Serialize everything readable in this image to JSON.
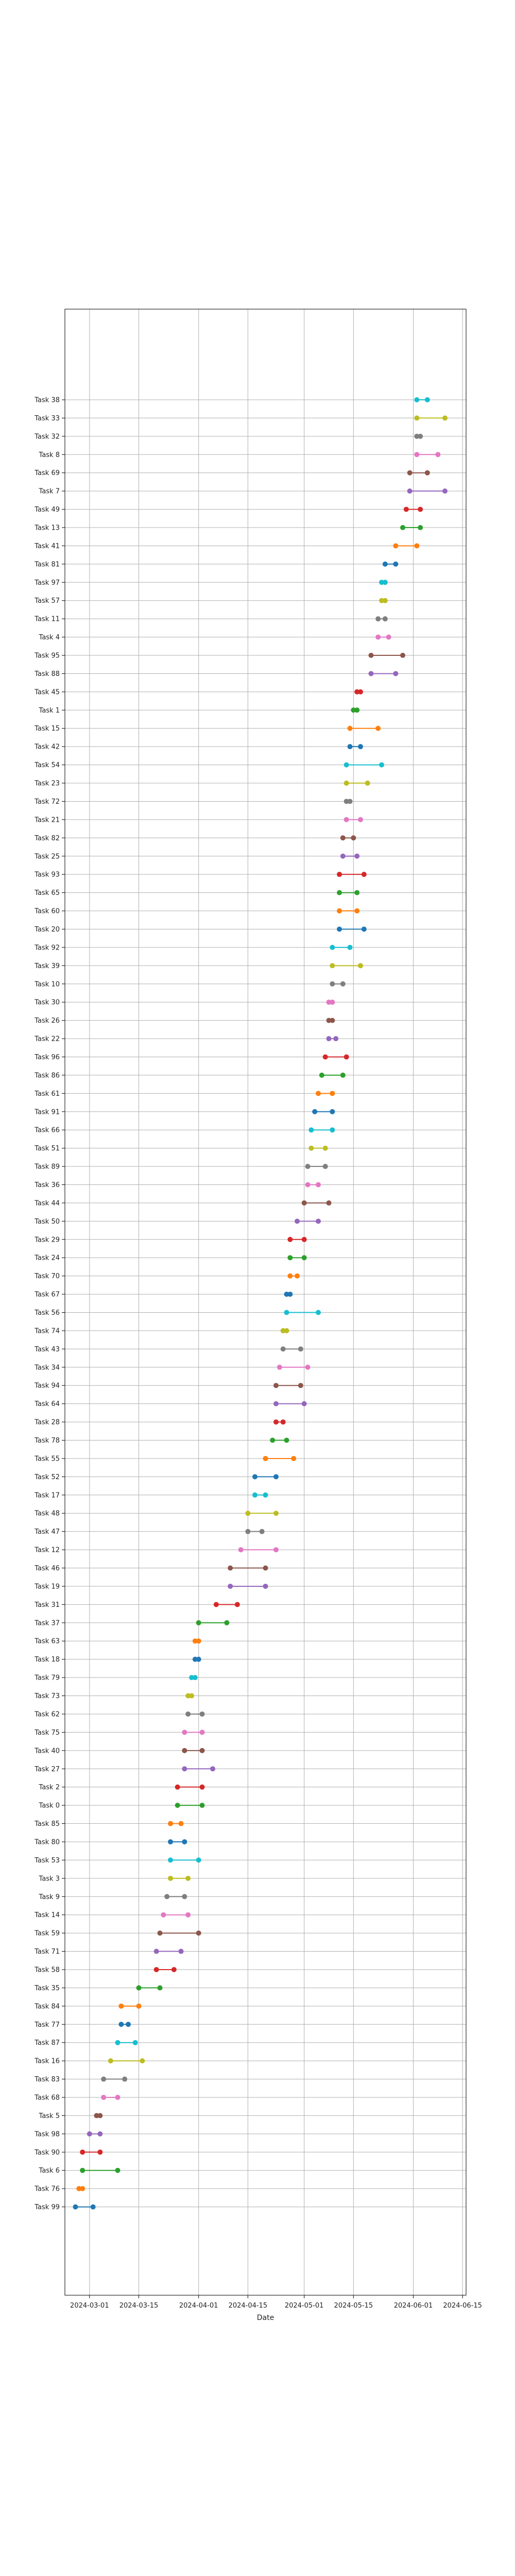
{
  "chart_data": {
    "type": "dumbbell",
    "xlabel": "Date",
    "x_ticks": [
      "2024-03-01",
      "2024-03-15",
      "2024-04-01",
      "2024-04-15",
      "2024-05-01",
      "2024-05-15",
      "2024-06-01",
      "2024-06-15"
    ],
    "xlim": [
      "2024-02-23",
      "2024-06-16"
    ],
    "grid": true,
    "tasks": [
      {
        "name": "Task 38",
        "start": "2024-06-02",
        "end": "2024-06-05",
        "color": "#17becf"
      },
      {
        "name": "Task 33",
        "start": "2024-06-02",
        "end": "2024-06-10",
        "color": "#bcbd22"
      },
      {
        "name": "Task 32",
        "start": "2024-06-02",
        "end": "2024-06-03",
        "color": "#7f7f7f"
      },
      {
        "name": "Task 8",
        "start": "2024-06-02",
        "end": "2024-06-08",
        "color": "#e377c2"
      },
      {
        "name": "Task 69",
        "start": "2024-05-31",
        "end": "2024-06-05",
        "color": "#8c564b"
      },
      {
        "name": "Task 7",
        "start": "2024-05-31",
        "end": "2024-06-10",
        "color": "#9467bd"
      },
      {
        "name": "Task 49",
        "start": "2024-05-30",
        "end": "2024-06-03",
        "color": "#d62728"
      },
      {
        "name": "Task 13",
        "start": "2024-05-29",
        "end": "2024-06-03",
        "color": "#2ca02c"
      },
      {
        "name": "Task 41",
        "start": "2024-05-27",
        "end": "2024-06-02",
        "color": "#ff7f0e"
      },
      {
        "name": "Task 81",
        "start": "2024-05-24",
        "end": "2024-05-27",
        "color": "#1f77b4"
      },
      {
        "name": "Task 97",
        "start": "2024-05-23",
        "end": "2024-05-24",
        "color": "#17becf"
      },
      {
        "name": "Task 57",
        "start": "2024-05-23",
        "end": "2024-05-24",
        "color": "#bcbd22"
      },
      {
        "name": "Task 11",
        "start": "2024-05-22",
        "end": "2024-05-24",
        "color": "#7f7f7f"
      },
      {
        "name": "Task 4",
        "start": "2024-05-22",
        "end": "2024-05-25",
        "color": "#e377c2"
      },
      {
        "name": "Task 95",
        "start": "2024-05-20",
        "end": "2024-05-29",
        "color": "#8c564b"
      },
      {
        "name": "Task 88",
        "start": "2024-05-20",
        "end": "2024-05-27",
        "color": "#9467bd"
      },
      {
        "name": "Task 45",
        "start": "2024-05-16",
        "end": "2024-05-17",
        "color": "#d62728"
      },
      {
        "name": "Task 1",
        "start": "2024-05-15",
        "end": "2024-05-16",
        "color": "#2ca02c"
      },
      {
        "name": "Task 15",
        "start": "2024-05-14",
        "end": "2024-05-22",
        "color": "#ff7f0e"
      },
      {
        "name": "Task 42",
        "start": "2024-05-14",
        "end": "2024-05-17",
        "color": "#1f77b4"
      },
      {
        "name": "Task 54",
        "start": "2024-05-13",
        "end": "2024-05-23",
        "color": "#17becf"
      },
      {
        "name": "Task 23",
        "start": "2024-05-13",
        "end": "2024-05-19",
        "color": "#bcbd22"
      },
      {
        "name": "Task 72",
        "start": "2024-05-13",
        "end": "2024-05-14",
        "color": "#7f7f7f"
      },
      {
        "name": "Task 21",
        "start": "2024-05-13",
        "end": "2024-05-17",
        "color": "#e377c2"
      },
      {
        "name": "Task 82",
        "start": "2024-05-12",
        "end": "2024-05-15",
        "color": "#8c564b"
      },
      {
        "name": "Task 25",
        "start": "2024-05-12",
        "end": "2024-05-16",
        "color": "#9467bd"
      },
      {
        "name": "Task 93",
        "start": "2024-05-11",
        "end": "2024-05-18",
        "color": "#d62728"
      },
      {
        "name": "Task 65",
        "start": "2024-05-11",
        "end": "2024-05-16",
        "color": "#2ca02c"
      },
      {
        "name": "Task 60",
        "start": "2024-05-11",
        "end": "2024-05-16",
        "color": "#ff7f0e"
      },
      {
        "name": "Task 20",
        "start": "2024-05-11",
        "end": "2024-05-18",
        "color": "#1f77b4"
      },
      {
        "name": "Task 92",
        "start": "2024-05-09",
        "end": "2024-05-14",
        "color": "#17becf"
      },
      {
        "name": "Task 39",
        "start": "2024-05-09",
        "end": "2024-05-17",
        "color": "#bcbd22"
      },
      {
        "name": "Task 10",
        "start": "2024-05-09",
        "end": "2024-05-12",
        "color": "#7f7f7f"
      },
      {
        "name": "Task 30",
        "start": "2024-05-08",
        "end": "2024-05-09",
        "color": "#e377c2"
      },
      {
        "name": "Task 26",
        "start": "2024-05-08",
        "end": "2024-05-09",
        "color": "#8c564b"
      },
      {
        "name": "Task 22",
        "start": "2024-05-08",
        "end": "2024-05-10",
        "color": "#9467bd"
      },
      {
        "name": "Task 96",
        "start": "2024-05-07",
        "end": "2024-05-13",
        "color": "#d62728"
      },
      {
        "name": "Task 86",
        "start": "2024-05-06",
        "end": "2024-05-12",
        "color": "#2ca02c"
      },
      {
        "name": "Task 61",
        "start": "2024-05-05",
        "end": "2024-05-09",
        "color": "#ff7f0e"
      },
      {
        "name": "Task 91",
        "start": "2024-05-04",
        "end": "2024-05-09",
        "color": "#1f77b4"
      },
      {
        "name": "Task 66",
        "start": "2024-05-03",
        "end": "2024-05-09",
        "color": "#17becf"
      },
      {
        "name": "Task 51",
        "start": "2024-05-03",
        "end": "2024-05-07",
        "color": "#bcbd22"
      },
      {
        "name": "Task 89",
        "start": "2024-05-02",
        "end": "2024-05-07",
        "color": "#7f7f7f"
      },
      {
        "name": "Task 36",
        "start": "2024-05-02",
        "end": "2024-05-05",
        "color": "#e377c2"
      },
      {
        "name": "Task 44",
        "start": "2024-05-01",
        "end": "2024-05-08",
        "color": "#8c564b"
      },
      {
        "name": "Task 50",
        "start": "2024-04-29",
        "end": "2024-05-05",
        "color": "#9467bd"
      },
      {
        "name": "Task 29",
        "start": "2024-04-27",
        "end": "2024-05-01",
        "color": "#d62728"
      },
      {
        "name": "Task 24",
        "start": "2024-04-27",
        "end": "2024-05-01",
        "color": "#2ca02c"
      },
      {
        "name": "Task 70",
        "start": "2024-04-27",
        "end": "2024-04-29",
        "color": "#ff7f0e"
      },
      {
        "name": "Task 67",
        "start": "2024-04-26",
        "end": "2024-04-27",
        "color": "#1f77b4"
      },
      {
        "name": "Task 56",
        "start": "2024-04-26",
        "end": "2024-05-05",
        "color": "#17becf"
      },
      {
        "name": "Task 74",
        "start": "2024-04-25",
        "end": "2024-04-26",
        "color": "#bcbd22"
      },
      {
        "name": "Task 43",
        "start": "2024-04-25",
        "end": "2024-04-30",
        "color": "#7f7f7f"
      },
      {
        "name": "Task 34",
        "start": "2024-04-24",
        "end": "2024-05-02",
        "color": "#e377c2"
      },
      {
        "name": "Task 94",
        "start": "2024-04-23",
        "end": "2024-04-30",
        "color": "#8c564b"
      },
      {
        "name": "Task 64",
        "start": "2024-04-23",
        "end": "2024-05-01",
        "color": "#9467bd"
      },
      {
        "name": "Task 28",
        "start": "2024-04-23",
        "end": "2024-04-25",
        "color": "#d62728"
      },
      {
        "name": "Task 78",
        "start": "2024-04-22",
        "end": "2024-04-26",
        "color": "#2ca02c"
      },
      {
        "name": "Task 55",
        "start": "2024-04-20",
        "end": "2024-04-28",
        "color": "#ff7f0e"
      },
      {
        "name": "Task 52",
        "start": "2024-04-17",
        "end": "2024-04-23",
        "color": "#1f77b4"
      },
      {
        "name": "Task 17",
        "start": "2024-04-17",
        "end": "2024-04-20",
        "color": "#17becf"
      },
      {
        "name": "Task 48",
        "start": "2024-04-15",
        "end": "2024-04-23",
        "color": "#bcbd22"
      },
      {
        "name": "Task 47",
        "start": "2024-04-15",
        "end": "2024-04-19",
        "color": "#7f7f7f"
      },
      {
        "name": "Task 12",
        "start": "2024-04-13",
        "end": "2024-04-23",
        "color": "#e377c2"
      },
      {
        "name": "Task 46",
        "start": "2024-04-10",
        "end": "2024-04-20",
        "color": "#8c564b"
      },
      {
        "name": "Task 19",
        "start": "2024-04-10",
        "end": "2024-04-20",
        "color": "#9467bd"
      },
      {
        "name": "Task 31",
        "start": "2024-04-06",
        "end": "2024-04-12",
        "color": "#d62728"
      },
      {
        "name": "Task 37",
        "start": "2024-04-01",
        "end": "2024-04-09",
        "color": "#2ca02c"
      },
      {
        "name": "Task 63",
        "start": "2024-03-31",
        "end": "2024-04-01",
        "color": "#ff7f0e"
      },
      {
        "name": "Task 18",
        "start": "2024-03-31",
        "end": "2024-04-01",
        "color": "#1f77b4"
      },
      {
        "name": "Task 79",
        "start": "2024-03-30",
        "end": "2024-03-31",
        "color": "#17becf"
      },
      {
        "name": "Task 73",
        "start": "2024-03-29",
        "end": "2024-03-30",
        "color": "#bcbd22"
      },
      {
        "name": "Task 62",
        "start": "2024-03-29",
        "end": "2024-04-02",
        "color": "#7f7f7f"
      },
      {
        "name": "Task 75",
        "start": "2024-03-28",
        "end": "2024-04-02",
        "color": "#e377c2"
      },
      {
        "name": "Task 40",
        "start": "2024-03-28",
        "end": "2024-04-02",
        "color": "#8c564b"
      },
      {
        "name": "Task 27",
        "start": "2024-03-28",
        "end": "2024-04-05",
        "color": "#9467bd"
      },
      {
        "name": "Task 2",
        "start": "2024-03-26",
        "end": "2024-04-02",
        "color": "#d62728"
      },
      {
        "name": "Task 0",
        "start": "2024-03-26",
        "end": "2024-04-02",
        "color": "#2ca02c"
      },
      {
        "name": "Task 85",
        "start": "2024-03-24",
        "end": "2024-03-27",
        "color": "#ff7f0e"
      },
      {
        "name": "Task 80",
        "start": "2024-03-24",
        "end": "2024-03-28",
        "color": "#1f77b4"
      },
      {
        "name": "Task 53",
        "start": "2024-03-24",
        "end": "2024-04-01",
        "color": "#17becf"
      },
      {
        "name": "Task 3",
        "start": "2024-03-24",
        "end": "2024-03-29",
        "color": "#bcbd22"
      },
      {
        "name": "Task 9",
        "start": "2024-03-23",
        "end": "2024-03-28",
        "color": "#7f7f7f"
      },
      {
        "name": "Task 14",
        "start": "2024-03-22",
        "end": "2024-03-29",
        "color": "#e377c2"
      },
      {
        "name": "Task 59",
        "start": "2024-03-21",
        "end": "2024-04-01",
        "color": "#8c564b"
      },
      {
        "name": "Task 71",
        "start": "2024-03-20",
        "end": "2024-03-27",
        "color": "#9467bd"
      },
      {
        "name": "Task 58",
        "start": "2024-03-20",
        "end": "2024-03-25",
        "color": "#d62728"
      },
      {
        "name": "Task 35",
        "start": "2024-03-15",
        "end": "2024-03-21",
        "color": "#2ca02c"
      },
      {
        "name": "Task 84",
        "start": "2024-03-10",
        "end": "2024-03-15",
        "color": "#ff7f0e"
      },
      {
        "name": "Task 77",
        "start": "2024-03-10",
        "end": "2024-03-12",
        "color": "#1f77b4"
      },
      {
        "name": "Task 87",
        "start": "2024-03-09",
        "end": "2024-03-14",
        "color": "#17becf"
      },
      {
        "name": "Task 16",
        "start": "2024-03-07",
        "end": "2024-03-16",
        "color": "#bcbd22"
      },
      {
        "name": "Task 83",
        "start": "2024-03-05",
        "end": "2024-03-11",
        "color": "#7f7f7f"
      },
      {
        "name": "Task 68",
        "start": "2024-03-05",
        "end": "2024-03-09",
        "color": "#e377c2"
      },
      {
        "name": "Task 5",
        "start": "2024-03-03",
        "end": "2024-03-04",
        "color": "#8c564b"
      },
      {
        "name": "Task 98",
        "start": "2024-03-01",
        "end": "2024-03-04",
        "color": "#9467bd"
      },
      {
        "name": "Task 90",
        "start": "2024-02-28",
        "end": "2024-03-04",
        "color": "#d62728"
      },
      {
        "name": "Task 6",
        "start": "2024-02-28",
        "end": "2024-03-09",
        "color": "#2ca02c"
      },
      {
        "name": "Task 76",
        "start": "2024-02-27",
        "end": "2024-02-28",
        "color": "#ff7f0e"
      },
      {
        "name": "Task 99",
        "start": "2024-02-26",
        "end": "2024-03-02",
        "color": "#1f77b4"
      }
    ]
  }
}
